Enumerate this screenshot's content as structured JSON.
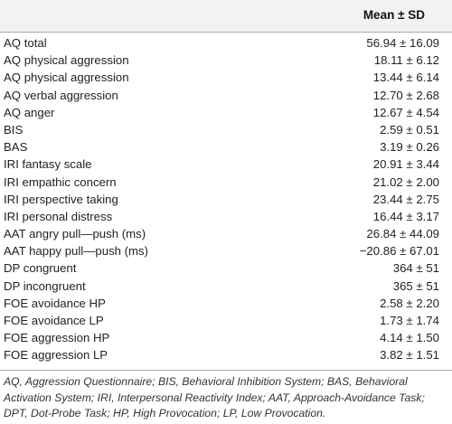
{
  "table": {
    "header": "Mean ± SD",
    "rows": [
      {
        "label": "AQ total",
        "value": "56.94 ± 16.09"
      },
      {
        "label": "AQ physical aggression",
        "value": "18.11 ± 6.12"
      },
      {
        "label": "AQ physical aggression",
        "value": "13.44 ± 6.14"
      },
      {
        "label": "AQ verbal aggression",
        "value": "12.70 ± 2.68"
      },
      {
        "label": "AQ anger",
        "value": "12.67 ± 4.54"
      },
      {
        "label": "BIS",
        "value": "2.59 ± 0.51"
      },
      {
        "label": "BAS",
        "value": "3.19 ± 0.26"
      },
      {
        "label": "IRI fantasy scale",
        "value": "20.91 ± 3.44"
      },
      {
        "label": "IRI empathic concern",
        "value": "21.02 ± 2.00"
      },
      {
        "label": "IRI perspective taking",
        "value": "23.44 ± 2.75"
      },
      {
        "label": "IRI personal distress",
        "value": "16.44 ± 3.17"
      },
      {
        "label": "AAT angry pull—push (ms)",
        "value": "26.84 ± 44.09"
      },
      {
        "label": "AAT happy pull—push (ms)",
        "value": "−20.86 ± 67.01"
      },
      {
        "label": "DP congruent",
        "value": "364 ± 51"
      },
      {
        "label": "DP incongruent",
        "value": "365 ± 51"
      },
      {
        "label": "FOE avoidance HP",
        "value": "2.58 ± 2.20"
      },
      {
        "label": "FOE avoidance LP",
        "value": "1.73 ± 1.74"
      },
      {
        "label": "FOE aggression HP",
        "value": "4.14 ± 1.50"
      },
      {
        "label": "FOE aggression LP",
        "value": "3.82 ± 1.51"
      }
    ],
    "footnote": "AQ, Aggression Questionnaire; BIS, Behavioral Inhibition System; BAS, Behavioral Activation System; IRI, Interpersonal Reactivity Index; AAT, Approach-Avoidance Task; DPT, Dot-Probe Task; HP, High Provocation; LP, Low Provocation."
  }
}
